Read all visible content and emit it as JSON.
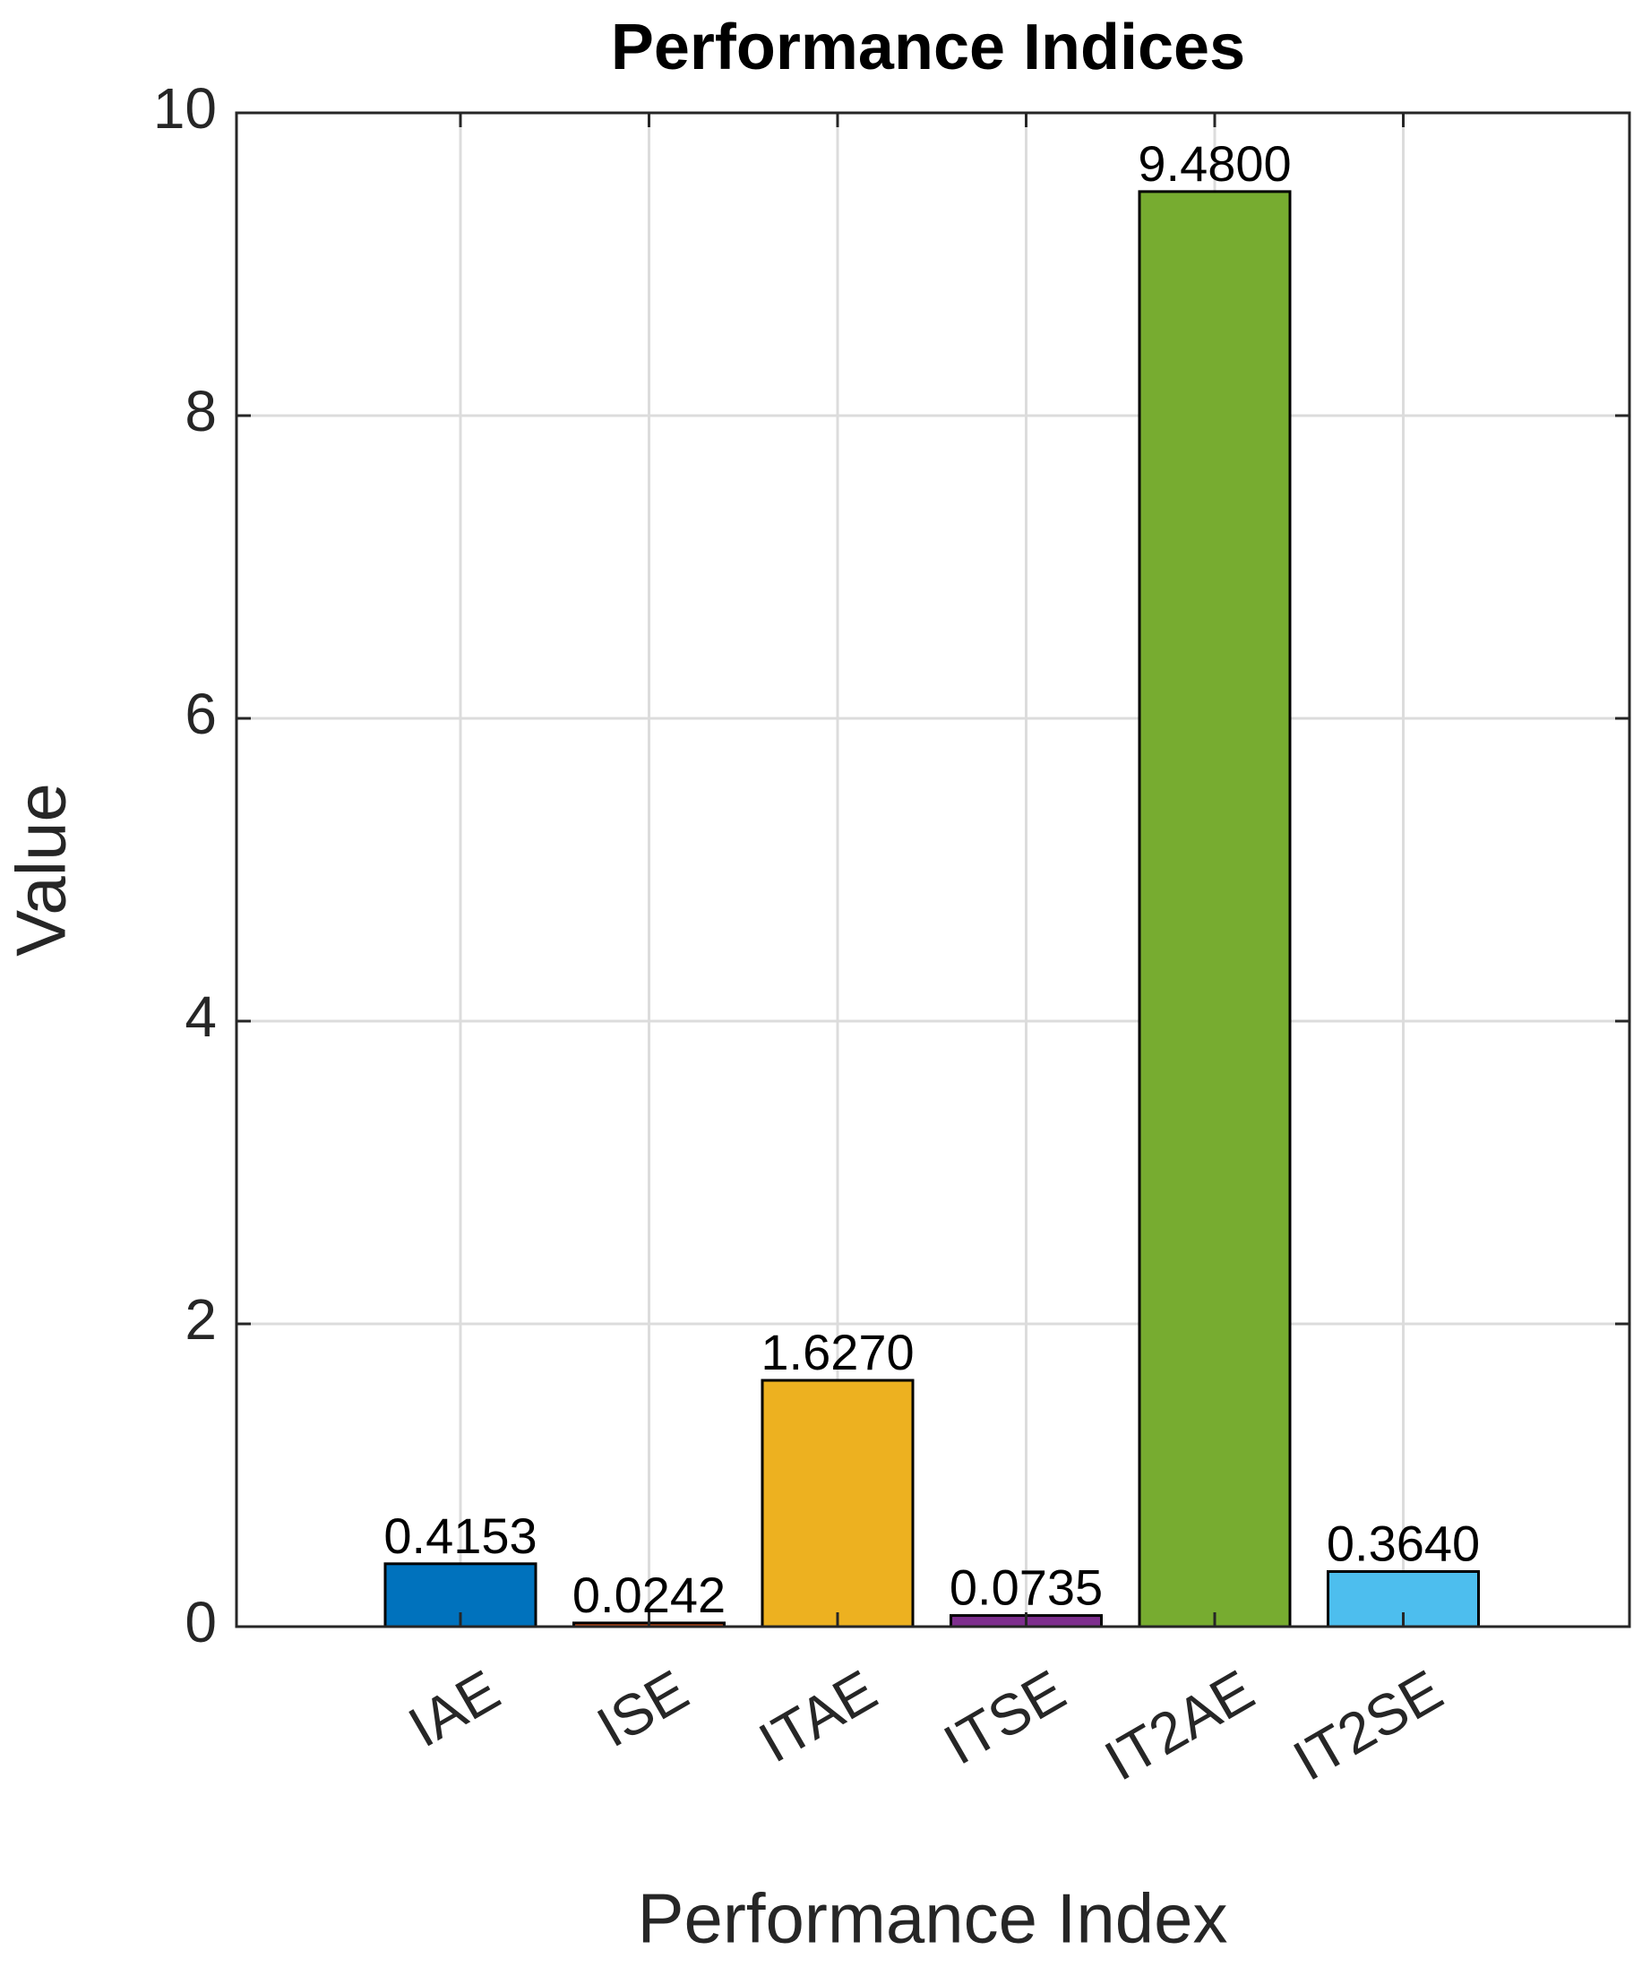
{
  "chart_data": {
    "type": "bar",
    "title": "Performance Indices",
    "x_label": "Performance Index",
    "y_label": "Value",
    "categories": [
      "IAE",
      "ISE",
      "ITAE",
      "ITSE",
      "IT2AE",
      "IT2SE"
    ],
    "values": [
      0.4153,
      0.0242,
      1.627,
      0.0735,
      9.48,
      0.364
    ],
    "value_labels": [
      "0.4153",
      "0.0242",
      "1.6270",
      "0.0735",
      "9.4800",
      "0.3640"
    ],
    "colors": [
      "#0072bd",
      "#d95319",
      "#edb120",
      "#7e2f8e",
      "#77ac30",
      "#4dbeee"
    ],
    "ylim": [
      0,
      10
    ],
    "yticks": [
      0,
      2,
      4,
      6,
      8,
      10
    ],
    "grid": true
  }
}
